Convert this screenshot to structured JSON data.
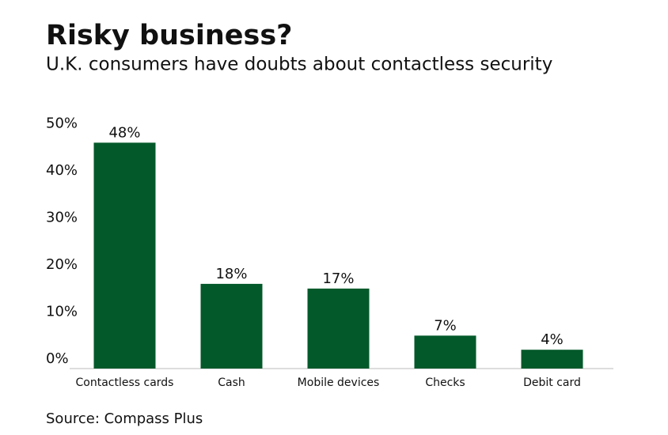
{
  "chart_data": {
    "type": "bar",
    "title": "Risky business?",
    "subtitle": "U.K. consumers have doubts about contactless security",
    "categories": [
      "Contactless cards",
      "Cash",
      "Mobile devices",
      "Checks",
      "Debit card"
    ],
    "values": [
      48,
      18,
      17,
      7,
      4
    ],
    "value_labels": [
      "48%",
      "18%",
      "17%",
      "7%",
      "4%"
    ],
    "color": "#03592a",
    "ylim": [
      0,
      50
    ],
    "yticks": [
      {
        "value": 0,
        "label": "0%"
      },
      {
        "value": 10,
        "label": "10%"
      },
      {
        "value": 20,
        "label": "20%"
      },
      {
        "value": 30,
        "label": "30%"
      },
      {
        "value": 40,
        "label": "40%"
      },
      {
        "value": 50,
        "label": "50%"
      }
    ],
    "grid": false,
    "source": "Source: Compass Plus"
  }
}
